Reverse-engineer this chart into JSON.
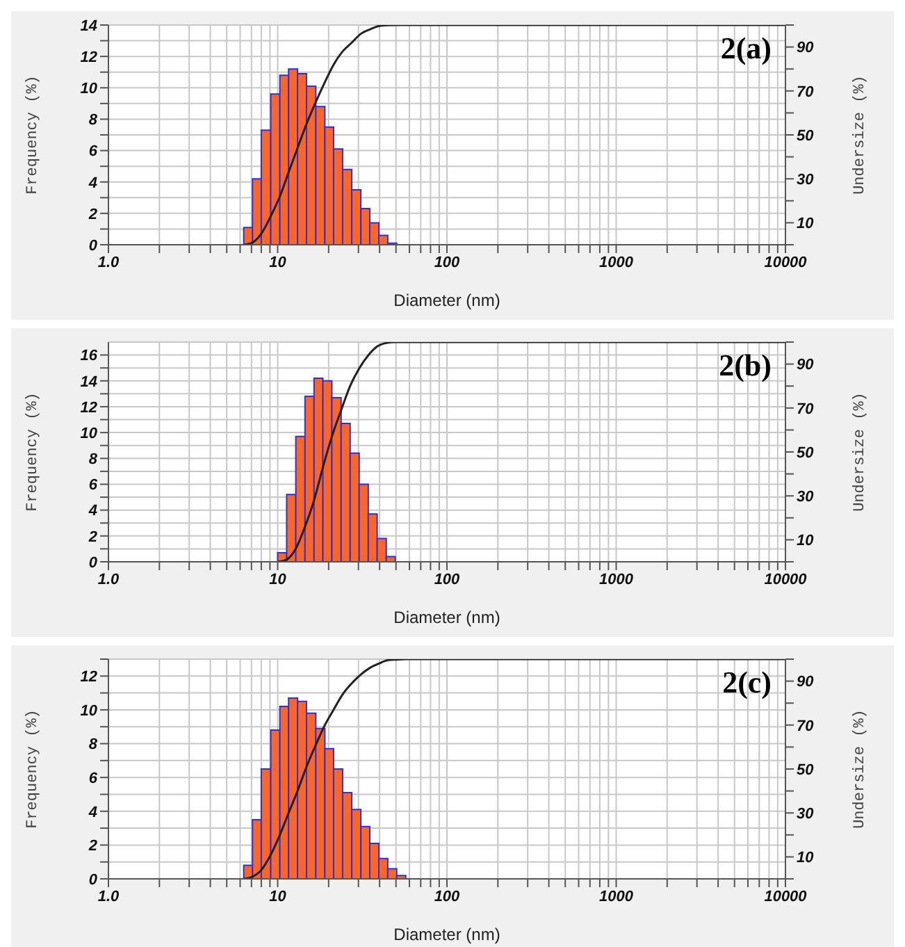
{
  "chart_data": [
    {
      "type": "histogram",
      "annotations": [
        "2(a)"
      ],
      "xlabel": "Diameter (nm)",
      "ylabel": "Frequency (%)",
      "y2label": "Undersize (%)",
      "log": "x",
      "grid": true,
      "color": "#ff6622",
      "bins": [
        6.3,
        7.1,
        8.0,
        9.1,
        10.3,
        11.6,
        13.1,
        14.8,
        16.8,
        19.0,
        21.4,
        24.2,
        27.4,
        31.0,
        35.0,
        39.6,
        44.7,
        50.5
      ],
      "values": [
        1.1,
        4.2,
        7.3,
        9.6,
        10.8,
        11.2,
        10.9,
        10.1,
        8.8,
        7.5,
        6.1,
        4.8,
        3.5,
        2.3,
        1.4,
        0.6,
        0.1
      ],
      "series": [
        {
          "type": "line",
          "axis": "y2",
          "color": "#222222",
          "x": [
            6.3,
            7.1,
            8.0,
            9.1,
            10.3,
            11.6,
            13.1,
            14.8,
            16.8,
            19.0,
            21.4,
            24.2,
            27.4,
            31.0,
            35.0,
            39.6,
            44.7,
            50.5,
            10000
          ],
          "values": [
            0,
            1,
            5,
            13,
            22,
            33,
            44,
            55,
            65,
            74,
            82,
            88,
            92,
            96,
            98,
            99.5,
            99.9,
            100,
            100
          ]
        }
      ],
      "xlim": [
        1,
        10000
      ],
      "xticks": [
        {
          "value": 1,
          "label": "1.0"
        },
        {
          "value": 2,
          "label": null
        },
        {
          "value": 3,
          "label": null
        },
        {
          "value": 4,
          "label": null
        },
        {
          "value": 5,
          "label": null
        },
        {
          "value": 6,
          "label": null
        },
        {
          "value": 7,
          "label": null
        },
        {
          "value": 8,
          "label": null
        },
        {
          "value": 9,
          "label": null
        },
        10,
        {
          "value": 20,
          "label": null
        },
        {
          "value": 30,
          "label": null
        },
        {
          "value": 40,
          "label": null
        },
        {
          "value": 50,
          "label": null
        },
        {
          "value": 60,
          "label": null
        },
        {
          "value": 70,
          "label": null
        },
        {
          "value": 80,
          "label": null
        },
        {
          "value": 90,
          "label": null
        },
        100,
        {
          "value": 200,
          "label": null
        },
        {
          "value": 300,
          "label": null
        },
        {
          "value": 400,
          "label": null
        },
        {
          "value": 500,
          "label": null
        },
        {
          "value": 600,
          "label": null
        },
        {
          "value": 700,
          "label": null
        },
        {
          "value": 800,
          "label": null
        },
        {
          "value": 900,
          "label": null
        },
        1000,
        {
          "value": 2000,
          "label": null
        },
        {
          "value": 3000,
          "label": null
        },
        {
          "value": 4000,
          "label": null
        },
        {
          "value": 5000,
          "label": null
        },
        {
          "value": 6000,
          "label": null
        },
        {
          "value": 7000,
          "label": null
        },
        {
          "value": 8000,
          "label": null
        },
        {
          "value": 9000,
          "label": null
        },
        10000
      ],
      "ylim": [
        0,
        14
      ],
      "yticks": [
        0,
        {
          "value": 1,
          "label": null
        },
        2,
        {
          "value": 3,
          "label": null
        },
        4,
        {
          "value": 5,
          "label": null
        },
        6,
        {
          "value": 7,
          "label": null
        },
        8,
        {
          "value": 9,
          "label": null
        },
        10,
        {
          "value": 11,
          "label": null
        },
        12,
        {
          "value": 13,
          "label": null
        },
        14
      ],
      "y2lim": [
        0,
        100
      ],
      "y2ticks": [
        {
          "value": 0,
          "label": null
        },
        10,
        {
          "value": 20,
          "label": null
        },
        30,
        {
          "value": 40,
          "label": null
        },
        50,
        {
          "value": 60,
          "label": null
        },
        70,
        {
          "value": 80,
          "label": null
        },
        90,
        {
          "value": 100,
          "label": null
        }
      ]
    },
    {
      "type": "histogram",
      "annotations": [
        "2(b)"
      ],
      "xlabel": "Diameter (nm)",
      "ylabel": "Frequency (%)",
      "y2label": "Undersize (%)",
      "log": "x",
      "grid": true,
      "color": "#ff6622",
      "bins": [
        10,
        11.3,
        12.8,
        14.5,
        16.4,
        18.5,
        20.9,
        23.7,
        26.8,
        30.3,
        34.3,
        38.7,
        43.8,
        49.5
      ],
      "values": [
        0.7,
        5.2,
        9.7,
        12.8,
        14.2,
        14.0,
        12.7,
        10.7,
        8.4,
        6.0,
        3.7,
        1.8,
        0.4
      ],
      "series": [
        {
          "type": "line",
          "axis": "y2",
          "color": "#222222",
          "x": [
            10,
            11.3,
            12.8,
            14.5,
            16.4,
            18.5,
            20.9,
            23.7,
            26.8,
            30.3,
            34.3,
            38.7,
            43.8,
            49.5,
            10000
          ],
          "values": [
            0,
            1,
            6,
            16,
            28,
            43,
            57,
            69,
            80,
            88,
            94,
            98,
            99.6,
            100,
            100
          ]
        }
      ],
      "xlim": [
        1,
        10000
      ],
      "xticks": [
        {
          "value": 1,
          "label": "1.0"
        },
        {
          "value": 2,
          "label": null
        },
        {
          "value": 3,
          "label": null
        },
        {
          "value": 4,
          "label": null
        },
        {
          "value": 5,
          "label": null
        },
        {
          "value": 6,
          "label": null
        },
        {
          "value": 7,
          "label": null
        },
        {
          "value": 8,
          "label": null
        },
        {
          "value": 9,
          "label": null
        },
        10,
        {
          "value": 20,
          "label": null
        },
        {
          "value": 30,
          "label": null
        },
        {
          "value": 40,
          "label": null
        },
        {
          "value": 50,
          "label": null
        },
        {
          "value": 60,
          "label": null
        },
        {
          "value": 70,
          "label": null
        },
        {
          "value": 80,
          "label": null
        },
        {
          "value": 90,
          "label": null
        },
        100,
        {
          "value": 200,
          "label": null
        },
        {
          "value": 300,
          "label": null
        },
        {
          "value": 400,
          "label": null
        },
        {
          "value": 500,
          "label": null
        },
        {
          "value": 600,
          "label": null
        },
        {
          "value": 700,
          "label": null
        },
        {
          "value": 800,
          "label": null
        },
        {
          "value": 900,
          "label": null
        },
        1000,
        {
          "value": 2000,
          "label": null
        },
        {
          "value": 3000,
          "label": null
        },
        {
          "value": 4000,
          "label": null
        },
        {
          "value": 5000,
          "label": null
        },
        {
          "value": 6000,
          "label": null
        },
        {
          "value": 7000,
          "label": null
        },
        {
          "value": 8000,
          "label": null
        },
        {
          "value": 9000,
          "label": null
        },
        10000
      ],
      "ylim": [
        0,
        17
      ],
      "yticks": [
        0,
        {
          "value": 1,
          "label": null
        },
        2,
        {
          "value": 3,
          "label": null
        },
        4,
        {
          "value": 5,
          "label": null
        },
        6,
        {
          "value": 7,
          "label": null
        },
        8,
        {
          "value": 9,
          "label": null
        },
        10,
        {
          "value": 11,
          "label": null
        },
        12,
        {
          "value": 13,
          "label": null
        },
        14,
        {
          "value": 15,
          "label": null
        },
        16
      ],
      "y2lim": [
        0,
        100
      ],
      "y2ticks": [
        {
          "value": 0,
          "label": null
        },
        10,
        {
          "value": 20,
          "label": null
        },
        30,
        {
          "value": 40,
          "label": null
        },
        50,
        {
          "value": 60,
          "label": null
        },
        70,
        {
          "value": 80,
          "label": null
        },
        90,
        {
          "value": 100,
          "label": null
        }
      ]
    },
    {
      "type": "histogram",
      "annotations": [
        "2(c)"
      ],
      "xlabel": "Diameter (nm)",
      "ylabel": "Frequency (%)",
      "y2label": "Undersize (%)",
      "log": "x",
      "grid": true,
      "color": "#ff6622",
      "bins": [
        6.3,
        7.1,
        8.0,
        9.1,
        10.3,
        11.6,
        13.1,
        14.8,
        16.8,
        19.0,
        21.4,
        24.2,
        27.4,
        31.0,
        35.0,
        39.6,
        44.7,
        50.5,
        57.1
      ],
      "values": [
        0.8,
        3.5,
        6.5,
        8.8,
        10.2,
        10.7,
        10.5,
        9.8,
        8.9,
        7.7,
        6.5,
        5.1,
        4.1,
        3.1,
        2.1,
        1.2,
        0.6,
        0.2
      ],
      "series": [
        {
          "type": "line",
          "axis": "y2",
          "color": "#222222",
          "x": [
            6.3,
            7.1,
            8.0,
            9.1,
            10.3,
            11.6,
            13.1,
            14.8,
            16.8,
            19.0,
            21.4,
            24.2,
            27.4,
            31.0,
            35.0,
            39.6,
            44.7,
            50.5,
            57.1,
            10000
          ],
          "values": [
            0,
            1,
            4,
            11,
            20,
            30,
            40,
            51,
            61,
            70,
            77,
            84,
            89,
            93,
            96,
            98,
            99.5,
            99.8,
            100,
            100
          ]
        }
      ],
      "xlim": [
        1,
        10000
      ],
      "xticks": [
        {
          "value": 1,
          "label": "1.0"
        },
        {
          "value": 2,
          "label": null
        },
        {
          "value": 3,
          "label": null
        },
        {
          "value": 4,
          "label": null
        },
        {
          "value": 5,
          "label": null
        },
        {
          "value": 6,
          "label": null
        },
        {
          "value": 7,
          "label": null
        },
        {
          "value": 8,
          "label": null
        },
        {
          "value": 9,
          "label": null
        },
        10,
        {
          "value": 20,
          "label": null
        },
        {
          "value": 30,
          "label": null
        },
        {
          "value": 40,
          "label": null
        },
        {
          "value": 50,
          "label": null
        },
        {
          "value": 60,
          "label": null
        },
        {
          "value": 70,
          "label": null
        },
        {
          "value": 80,
          "label": null
        },
        {
          "value": 90,
          "label": null
        },
        100,
        {
          "value": 200,
          "label": null
        },
        {
          "value": 300,
          "label": null
        },
        {
          "value": 400,
          "label": null
        },
        {
          "value": 500,
          "label": null
        },
        {
          "value": 600,
          "label": null
        },
        {
          "value": 700,
          "label": null
        },
        {
          "value": 800,
          "label": null
        },
        {
          "value": 900,
          "label": null
        },
        1000,
        {
          "value": 2000,
          "label": null
        },
        {
          "value": 3000,
          "label": null
        },
        {
          "value": 4000,
          "label": null
        },
        {
          "value": 5000,
          "label": null
        },
        {
          "value": 6000,
          "label": null
        },
        {
          "value": 7000,
          "label": null
        },
        {
          "value": 8000,
          "label": null
        },
        {
          "value": 9000,
          "label": null
        },
        10000
      ],
      "ylim": [
        0,
        13
      ],
      "yticks": [
        0,
        {
          "value": 1,
          "label": null
        },
        2,
        {
          "value": 3,
          "label": null
        },
        4,
        {
          "value": 5,
          "label": null
        },
        6,
        {
          "value": 7,
          "label": null
        },
        8,
        {
          "value": 9,
          "label": null
        },
        10,
        {
          "value": 11,
          "label": null
        },
        12,
        {
          "value": 13,
          "label": null
        }
      ],
      "y2lim": [
        0,
        100
      ],
      "y2ticks": [
        {
          "value": 0,
          "label": null
        },
        10,
        {
          "value": 20,
          "label": null
        },
        30,
        {
          "value": 40,
          "label": null
        },
        50,
        {
          "value": 60,
          "label": null
        },
        70,
        {
          "value": 80,
          "label": null
        },
        90,
        {
          "value": 100,
          "label": null
        }
      ]
    }
  ]
}
